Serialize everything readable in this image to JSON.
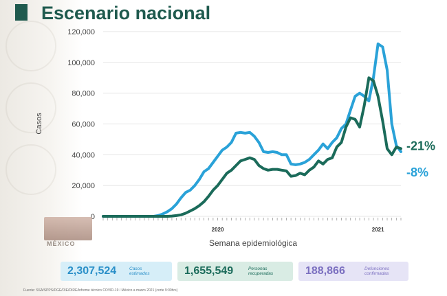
{
  "title": "Escenario nacional",
  "colors": {
    "estimated": "#2aa2d8",
    "confirmed": "#1b6b5a",
    "title": "#1f5a4e"
  },
  "chart_data": {
    "type": "line",
    "title": "Escenario nacional",
    "xlabel": "Semana epidemiológica",
    "ylabel": "Casos",
    "ylim": [
      0,
      120000
    ],
    "yticks": [
      "0",
      "20,000",
      "40,000",
      "60,000",
      "80,000",
      "100,000",
      "120,000"
    ],
    "year_labels": [
      {
        "label": "2020",
        "week": 26
      },
      {
        "label": "2021",
        "week": 61
      }
    ],
    "x": [
      1,
      2,
      3,
      4,
      5,
      6,
      7,
      8,
      9,
      10,
      11,
      12,
      13,
      14,
      15,
      16,
      17,
      18,
      19,
      20,
      21,
      22,
      23,
      24,
      25,
      26,
      27,
      28,
      29,
      30,
      31,
      32,
      33,
      34,
      35,
      36,
      37,
      38,
      39,
      40,
      41,
      42,
      43,
      44,
      45,
      46,
      47,
      48,
      49,
      50,
      51,
      52,
      53,
      54,
      55,
      56,
      57,
      58,
      59,
      60,
      61,
      62,
      63,
      64,
      65,
      66
    ],
    "series": [
      {
        "key": "estimated",
        "values": [
          0,
          0,
          0,
          0,
          0,
          0,
          0,
          0,
          0,
          0,
          0,
          0,
          500,
          1500,
          3000,
          5000,
          8000,
          12000,
          15500,
          17000,
          20000,
          24000,
          29000,
          31000,
          35000,
          39000,
          43000,
          45000,
          48000,
          54000,
          54500,
          54000,
          54500,
          52000,
          48000,
          42000,
          41500,
          42000,
          41500,
          40000,
          40000,
          34000,
          33500,
          34000,
          35000,
          37000,
          40000,
          43000,
          47000,
          44000,
          48000,
          51000,
          57000,
          60000,
          69000,
          78000,
          80000,
          78000,
          75000,
          90000,
          112000,
          110000,
          95000,
          60000,
          46000,
          42000
        ]
      },
      {
        "key": "confirmed",
        "values": [
          0,
          0,
          0,
          0,
          0,
          0,
          0,
          0,
          0,
          0,
          0,
          0,
          0,
          0,
          0,
          200,
          500,
          1000,
          2000,
          3500,
          5000,
          7000,
          9500,
          13000,
          17000,
          20000,
          24000,
          28000,
          30000,
          33000,
          36000,
          37000,
          38000,
          37000,
          33000,
          31000,
          30000,
          30500,
          30500,
          30000,
          29500,
          26000,
          26500,
          28000,
          27000,
          30000,
          32000,
          36000,
          34000,
          37000,
          38000,
          45000,
          48000,
          58000,
          64000,
          63000,
          58000,
          72000,
          90000,
          88000,
          78000,
          62000,
          44000,
          40000,
          45000,
          44000
        ]
      }
    ],
    "annotations": [
      {
        "text": "-21%",
        "series": "confirmed"
      },
      {
        "text": "-8%",
        "series": "estimated"
      }
    ]
  },
  "cards": [
    {
      "value": "2,307,524",
      "label": "Casos\nestimados"
    },
    {
      "value": "1,655,549",
      "label": "Personas\nrecuperadas"
    },
    {
      "value": "188,866",
      "label": "Defunciones\nconfirmadas"
    }
  ],
  "logo_text": "MÉXICO",
  "footer": "Fuente: SSA/SPPS/DGE/DIE/DIRE/Informe técnico COVID-19 / México a marzo 2021 (corte 9:00hrs)"
}
